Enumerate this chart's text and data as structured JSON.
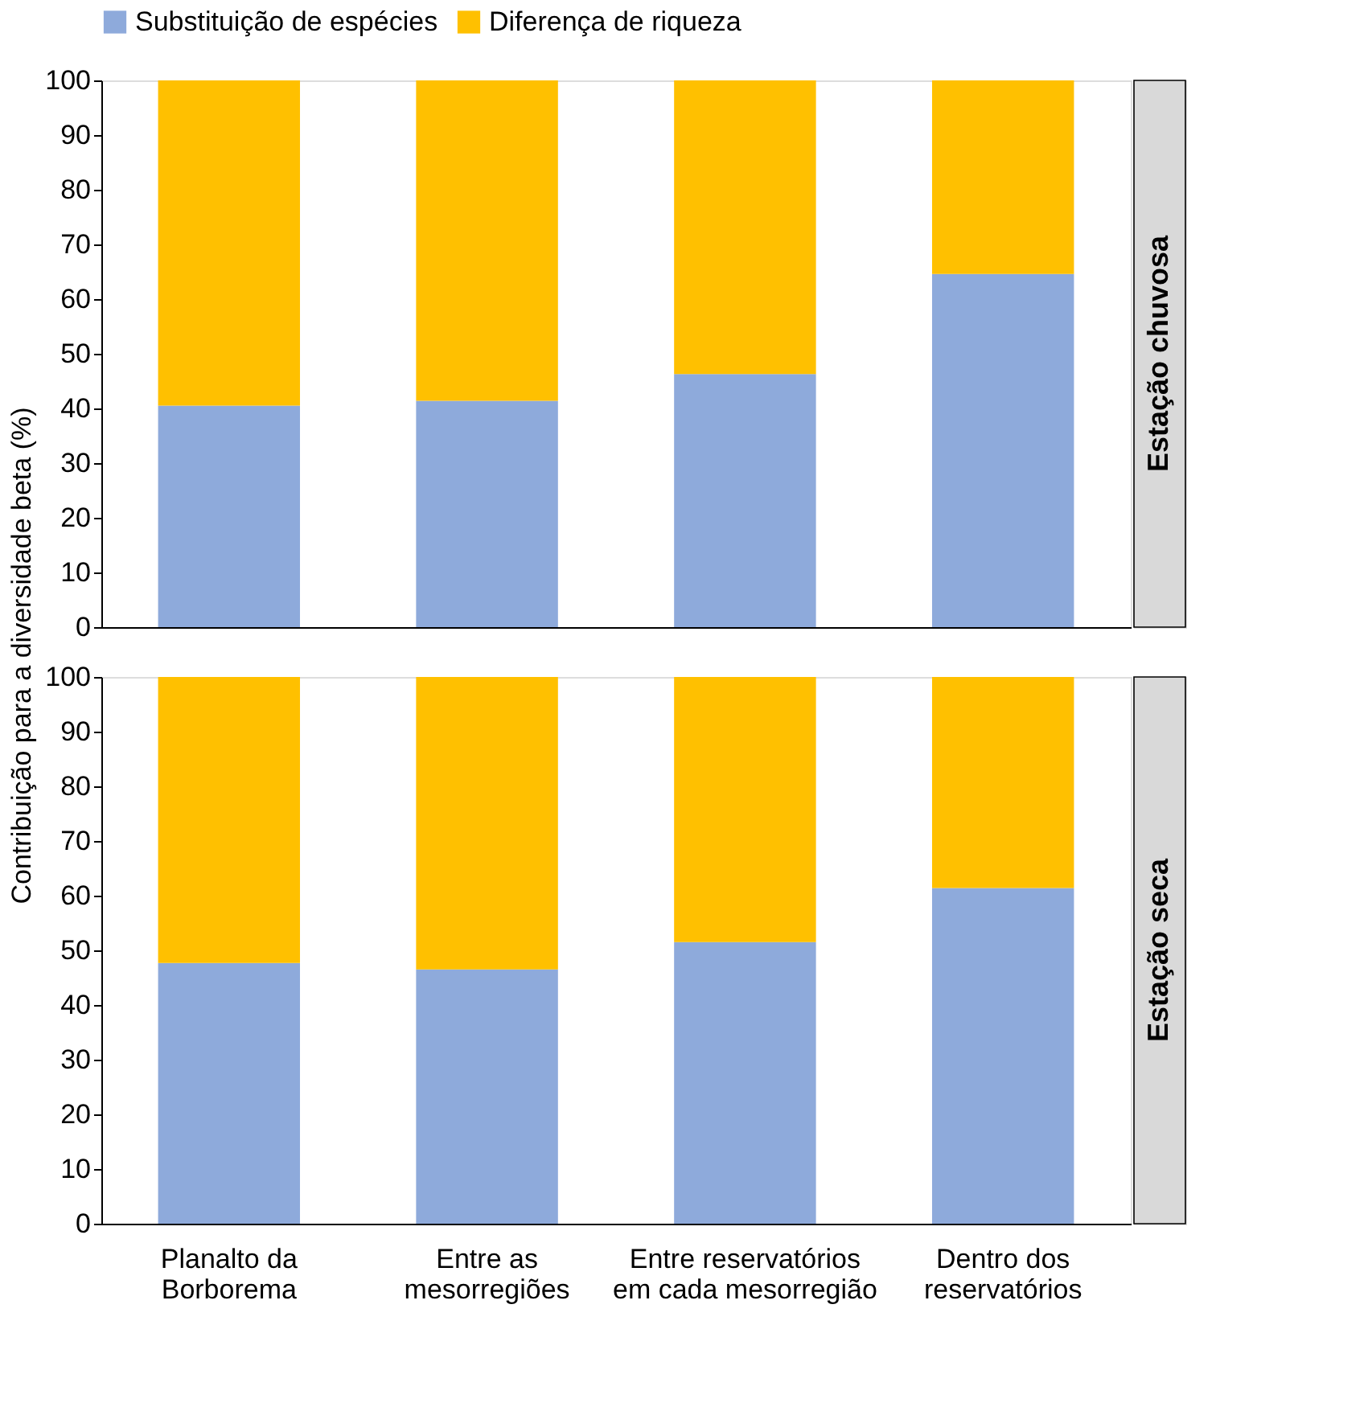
{
  "chart_data": [
    {
      "type": "bar",
      "title": "Estação chuvosa",
      "ylabel": "Contribuição para a diversidade beta (%)",
      "stacked": true,
      "legend": "top",
      "tick_labels": "y",
      "categories": [
        "Planalto da Borborema",
        "Entre as mesorregiões",
        "Entre reservatórios em cada mesorregião",
        "Dentro dos reservatórios"
      ],
      "series": [
        {
          "name": "Substituição de espécies",
          "color": "#8eaadb",
          "values": [
            40.5,
            41.4,
            46.3,
            64.6
          ]
        },
        {
          "name": "Diferença de riqueza",
          "color": "#ffc000",
          "values": [
            59.5,
            58.6,
            53.7,
            35.4
          ]
        }
      ],
      "ylim": [
        0,
        100
      ],
      "yticks": [
        0,
        10,
        20,
        30,
        40,
        50,
        60,
        70,
        80,
        90,
        100
      ]
    },
    {
      "type": "bar",
      "title": "Estação seca",
      "stacked": true,
      "legend": "top",
      "categories": [
        "Planalto da Borborema",
        "Entre as mesorregiões",
        "Entre reservatórios em cada mesorregião",
        "Dentro dos reservatórios"
      ],
      "series": [
        {
          "name": "Substituição de espécies",
          "color": "#8eaadb",
          "values": [
            47.7,
            46.5,
            51.5,
            61.4
          ]
        },
        {
          "name": "Diferença de riqueza",
          "color": "#ffc000",
          "values": [
            52.3,
            53.5,
            48.5,
            38.6
          ]
        }
      ],
      "ylim": [
        0,
        100
      ],
      "yticks": [
        0,
        10,
        20,
        30,
        40,
        50,
        60,
        70,
        80,
        90,
        100
      ]
    }
  ]
}
